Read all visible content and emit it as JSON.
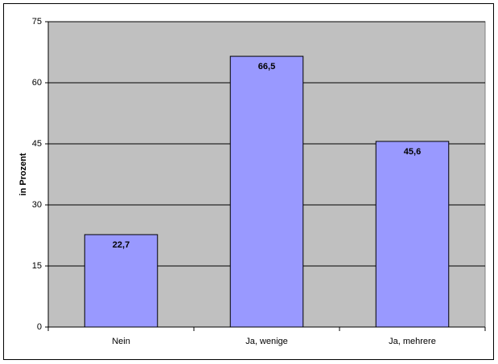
{
  "chart_data": {
    "type": "bar",
    "y_label": "in Prozent",
    "categories": [
      "Nein",
      "Ja, wenige",
      "Ja, mehrere"
    ],
    "values": [
      22.7,
      66.5,
      45.6
    ],
    "value_labels": [
      "22,7",
      "66,5",
      "45,6"
    ],
    "color": "#9999ff",
    "plot_background": "#c0c0c0",
    "ylim": [
      0,
      75
    ],
    "yticks": [
      0,
      15,
      30,
      45,
      60,
      75
    ],
    "grid": true
  }
}
